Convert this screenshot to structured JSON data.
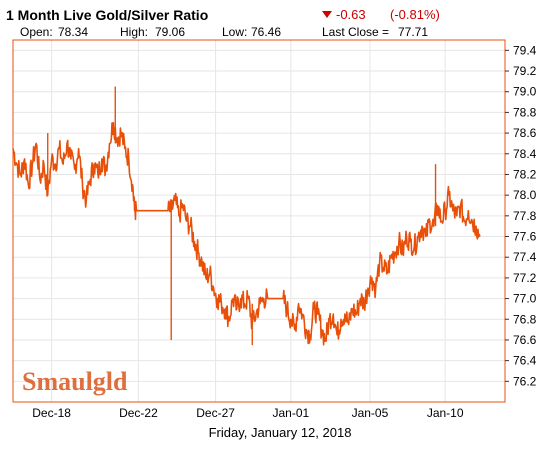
{
  "header": {
    "title": "1 Month Live Gold/Silver Ratio",
    "change": "-0.63",
    "change_pct": "(-0.81%)",
    "open_label": "Open:",
    "open": "78.34",
    "high_label": "High:",
    "high": "79.06",
    "low_label": "Low:",
    "low": "76.46",
    "last_close_label": "Last Close =",
    "last_close": "77.71"
  },
  "footer": {
    "date": "Friday, January 12, 2018"
  },
  "logo": {
    "text": "Smaulgld"
  },
  "colors": {
    "line": "#e8500a",
    "grid": "#e6e6e6",
    "frame": "#e8500a",
    "down": "#cc0000"
  },
  "chart_data": {
    "type": "line",
    "title": "1 Month Live Gold/Silver Ratio",
    "xlabel": "Friday, January 12, 2018",
    "ylabel": "",
    "x_ticks": [
      "Dec-18",
      "Dec-22",
      "Dec-27",
      "Jan-01",
      "Jan-05",
      "Jan-10"
    ],
    "y_ticks": [
      "76.2",
      "76.4",
      "76.6",
      "76.8",
      "77.0",
      "77.2",
      "77.4",
      "77.6",
      "77.8",
      "78.0",
      "78.2",
      "78.4",
      "78.6",
      "78.8",
      "79.0",
      "79.2",
      "79.4"
    ],
    "ylim": [
      76.0,
      79.5
    ],
    "xlim": [
      0,
      25.5
    ],
    "grid": true,
    "series": [
      {
        "values": [
          [
            0.0,
            78.45
          ],
          [
            0.2,
            78.3
          ],
          [
            0.4,
            78.2
          ],
          [
            0.6,
            78.35
          ],
          [
            0.8,
            78.1
          ],
          [
            1.0,
            78.3
          ],
          [
            1.2,
            78.5
          ],
          [
            1.4,
            78.15
          ],
          [
            1.6,
            78.3
          ],
          [
            1.8,
            78.0
          ],
          [
            2.0,
            78.35
          ],
          [
            2.2,
            78.3
          ],
          [
            2.4,
            78.45
          ],
          [
            2.6,
            78.3
          ],
          [
            2.8,
            78.5
          ],
          [
            3.0,
            78.35
          ],
          [
            3.2,
            78.25
          ],
          [
            3.4,
            78.45
          ],
          [
            3.6,
            78.1
          ],
          [
            3.8,
            77.95
          ],
          [
            4.0,
            78.15
          ],
          [
            4.2,
            78.3
          ],
          [
            4.4,
            78.2
          ],
          [
            4.6,
            78.35
          ],
          [
            4.8,
            78.25
          ],
          [
            5.0,
            78.5
          ],
          [
            5.2,
            78.7
          ],
          [
            5.4,
            78.55
          ],
          [
            5.6,
            78.6
          ],
          [
            5.8,
            78.45
          ],
          [
            6.0,
            78.35
          ],
          [
            6.2,
            78.1
          ],
          [
            6.3,
            77.85
          ],
          [
            6.4,
            77.85
          ],
          [
            7.0,
            77.85
          ],
          [
            7.6,
            77.85
          ],
          [
            8.0,
            77.85
          ],
          [
            8.2,
            77.85
          ],
          [
            8.4,
            77.95
          ],
          [
            8.6,
            77.8
          ],
          [
            8.8,
            77.9
          ],
          [
            9.0,
            77.75
          ],
          [
            9.2,
            77.7
          ],
          [
            9.4,
            77.55
          ],
          [
            9.6,
            77.45
          ],
          [
            9.8,
            77.35
          ],
          [
            10.0,
            77.2
          ],
          [
            10.2,
            77.25
          ],
          [
            10.4,
            77.1
          ],
          [
            10.6,
            77.0
          ],
          [
            10.8,
            76.95
          ],
          [
            11.0,
            76.9
          ],
          [
            11.2,
            76.8
          ],
          [
            11.4,
            77.0
          ],
          [
            11.6,
            76.9
          ],
          [
            11.8,
            77.0
          ],
          [
            12.0,
            76.95
          ],
          [
            12.2,
            77.0
          ],
          [
            12.4,
            76.75
          ],
          [
            12.6,
            76.85
          ],
          [
            12.8,
            76.95
          ],
          [
            13.0,
            77.0
          ],
          [
            13.2,
            77.0
          ],
          [
            13.6,
            77.0
          ],
          [
            14.0,
            77.0
          ],
          [
            14.2,
            76.9
          ],
          [
            14.4,
            76.8
          ],
          [
            14.6,
            76.7
          ],
          [
            14.8,
            76.95
          ],
          [
            15.0,
            76.85
          ],
          [
            15.2,
            76.7
          ],
          [
            15.4,
            76.65
          ],
          [
            15.6,
            76.9
          ],
          [
            15.8,
            76.85
          ],
          [
            16.0,
            76.7
          ],
          [
            16.2,
            76.6
          ],
          [
            16.4,
            76.8
          ],
          [
            16.6,
            76.85
          ],
          [
            16.8,
            76.65
          ],
          [
            17.0,
            76.8
          ],
          [
            17.2,
            76.85
          ],
          [
            17.4,
            76.75
          ],
          [
            17.6,
            76.9
          ],
          [
            17.8,
            76.85
          ],
          [
            18.0,
            77.0
          ],
          [
            18.2,
            76.95
          ],
          [
            18.4,
            77.1
          ],
          [
            18.6,
            77.2
          ],
          [
            18.8,
            77.1
          ],
          [
            19.0,
            77.35
          ],
          [
            19.2,
            77.3
          ],
          [
            19.4,
            77.25
          ],
          [
            19.6,
            77.4
          ],
          [
            19.8,
            77.45
          ],
          [
            20.0,
            77.55
          ],
          [
            20.2,
            77.45
          ],
          [
            20.4,
            77.6
          ],
          [
            20.6,
            77.55
          ],
          [
            20.8,
            77.5
          ],
          [
            21.0,
            77.6
          ],
          [
            21.2,
            77.7
          ],
          [
            21.4,
            77.6
          ],
          [
            21.6,
            77.75
          ],
          [
            21.8,
            77.7
          ],
          [
            22.0,
            77.9
          ],
          [
            22.2,
            77.75
          ],
          [
            22.4,
            77.85
          ],
          [
            22.6,
            78.0
          ],
          [
            22.8,
            77.85
          ],
          [
            23.0,
            77.8
          ],
          [
            23.2,
            77.9
          ],
          [
            23.4,
            77.75
          ],
          [
            23.6,
            77.85
          ],
          [
            23.8,
            77.75
          ],
          [
            24.0,
            77.7
          ],
          [
            24.2,
            77.6
          ]
        ]
      }
    ]
  }
}
